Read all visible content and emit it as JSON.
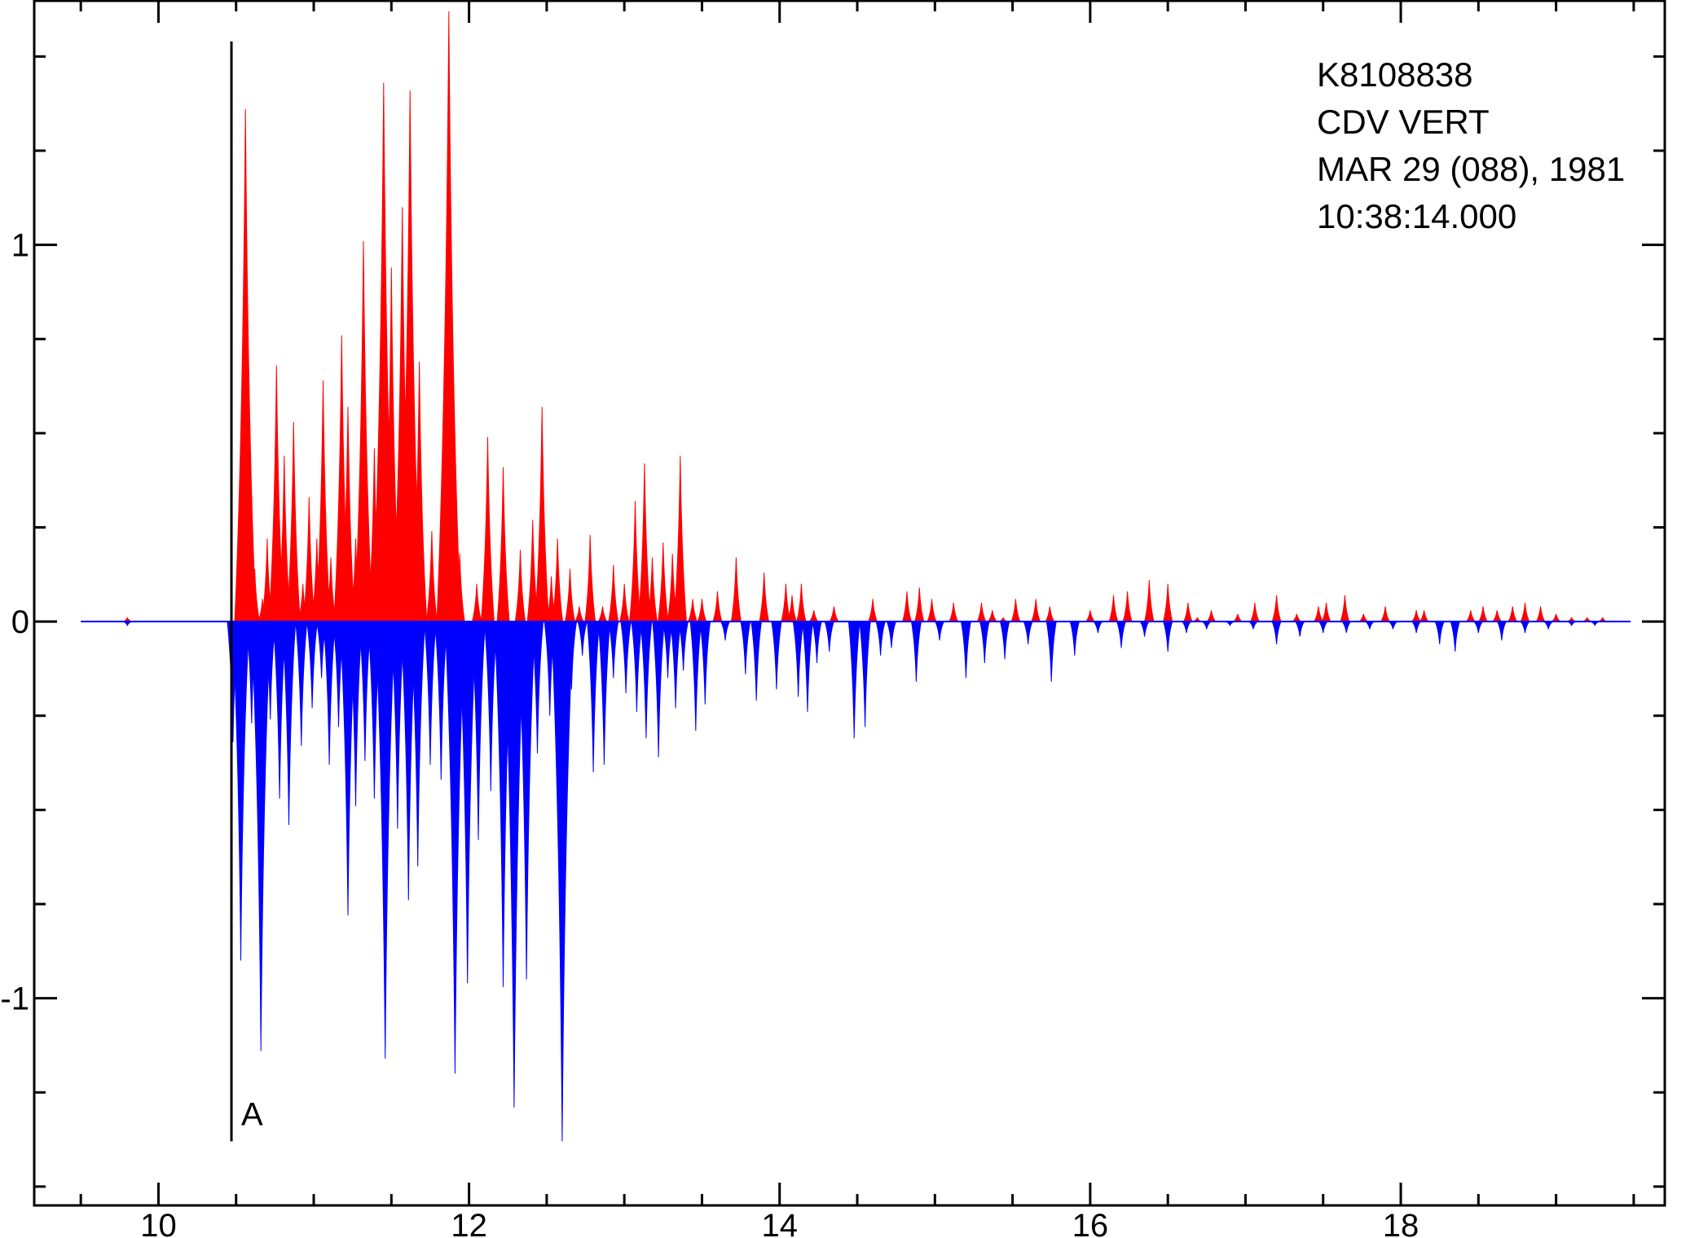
{
  "chart_data": {
    "type": "area",
    "title": "",
    "xlabel": "",
    "ylabel": "",
    "xlim": [
      9.2,
      19.7
    ],
    "ylim": [
      -1.55,
      1.65
    ],
    "x_ticks": [
      10,
      12,
      14,
      16,
      18
    ],
    "x_tick_labels": [
      "10",
      "12",
      "14",
      "16",
      "18"
    ],
    "x_minor_step": 0.5,
    "y_ticks": [
      -1,
      0,
      1
    ],
    "y_tick_labels": [
      "-1",
      "0",
      "1"
    ],
    "y_minor_step": 0.25,
    "info_lines": [
      "K8108838",
      "CDV  VERT",
      "MAR 29 (088), 1981",
      "10:38:14.000"
    ],
    "pick": {
      "label": "A",
      "x": 10.47,
      "ymin": -1.38,
      "ymax": 1.54
    },
    "trace_x_range": [
      9.5,
      19.48
    ],
    "colors": {
      "positive": "#ff0000",
      "negative": "#0000ff",
      "axis": "#000000"
    },
    "series": [
      {
        "name": "positive_peaks",
        "x": [
          9.8,
          10.56,
          10.62,
          10.67,
          10.7,
          10.76,
          10.81,
          10.87,
          10.93,
          10.97,
          11.02,
          11.06,
          11.11,
          11.18,
          11.22,
          11.27,
          11.32,
          11.39,
          11.45,
          11.5,
          11.57,
          11.62,
          11.68,
          11.76,
          11.87,
          11.94,
          12.05,
          12.12,
          12.22,
          12.33,
          12.41,
          12.47,
          12.53,
          12.57,
          12.65,
          12.71,
          12.78,
          12.86,
          12.93,
          13.0,
          13.07,
          13.13,
          13.18,
          13.25,
          13.31,
          13.36,
          13.44,
          13.5,
          13.6,
          13.72,
          13.9,
          14.04,
          14.08,
          14.14,
          14.22,
          14.35,
          14.6,
          14.82,
          14.9,
          14.98,
          15.12,
          15.3,
          15.37,
          15.44,
          15.52,
          15.65,
          15.74,
          16.0,
          16.15,
          16.24,
          16.38,
          16.5,
          16.63,
          16.69,
          16.78,
          16.95,
          17.06,
          17.2,
          17.33,
          17.47,
          17.52,
          17.64,
          17.76,
          17.9,
          18.1,
          18.15,
          18.45,
          18.53,
          18.62,
          18.72,
          18.8,
          18.9,
          19.0,
          19.1,
          19.2,
          19.3
        ],
        "values": [
          0.01,
          1.36,
          0.14,
          0.06,
          0.22,
          0.68,
          0.44,
          0.53,
          0.1,
          0.33,
          0.22,
          0.64,
          0.17,
          0.76,
          0.57,
          0.22,
          1.01,
          0.46,
          1.43,
          0.94,
          1.1,
          1.41,
          0.69,
          0.24,
          1.62,
          0.18,
          0.1,
          0.49,
          0.41,
          0.19,
          0.27,
          0.57,
          0.12,
          0.22,
          0.14,
          0.04,
          0.23,
          0.04,
          0.15,
          0.1,
          0.32,
          0.42,
          0.17,
          0.21,
          0.18,
          0.44,
          0.06,
          0.06,
          0.08,
          0.17,
          0.13,
          0.1,
          0.07,
          0.1,
          0.03,
          0.04,
          0.06,
          0.08,
          0.09,
          0.06,
          0.05,
          0.05,
          0.03,
          0.01,
          0.06,
          0.06,
          0.04,
          0.03,
          0.07,
          0.08,
          0.11,
          0.1,
          0.05,
          0.01,
          0.03,
          0.02,
          0.05,
          0.07,
          0.02,
          0.04,
          0.05,
          0.07,
          0.02,
          0.04,
          0.03,
          0.03,
          0.03,
          0.04,
          0.03,
          0.04,
          0.05,
          0.04,
          0.02,
          0.01,
          0.01,
          0.01
        ]
      },
      {
        "name": "negative_peaks",
        "x": [
          9.8,
          10.48,
          10.53,
          10.6,
          10.66,
          10.72,
          10.78,
          10.84,
          10.92,
          10.99,
          11.05,
          11.1,
          11.16,
          11.22,
          11.27,
          11.33,
          11.39,
          11.46,
          11.54,
          11.61,
          11.67,
          11.75,
          11.82,
          11.91,
          11.99,
          12.06,
          12.14,
          12.22,
          12.29,
          12.37,
          12.44,
          12.52,
          12.6,
          12.66,
          12.73,
          12.8,
          12.87,
          12.93,
          13.01,
          13.08,
          13.14,
          13.22,
          13.28,
          13.33,
          13.38,
          13.46,
          13.52,
          13.65,
          13.78,
          13.85,
          13.98,
          14.12,
          14.18,
          14.24,
          14.32,
          14.48,
          14.55,
          14.65,
          14.72,
          14.88,
          15.03,
          15.2,
          15.32,
          15.45,
          15.6,
          15.75,
          15.9,
          16.05,
          16.2,
          16.35,
          16.5,
          16.62,
          16.75,
          16.9,
          17.05,
          17.2,
          17.35,
          17.5,
          17.65,
          17.8,
          17.95,
          18.1,
          18.25,
          18.35,
          18.5,
          18.65,
          18.8,
          18.95,
          19.1,
          19.25
        ],
        "values": [
          -0.01,
          -0.32,
          -0.9,
          -0.27,
          -1.14,
          -0.26,
          -0.47,
          -0.54,
          -0.33,
          -0.23,
          -0.15,
          -0.38,
          -0.28,
          -0.78,
          -0.49,
          -0.37,
          -0.47,
          -1.16,
          -0.55,
          -0.74,
          -0.65,
          -0.38,
          -0.42,
          -1.2,
          -0.96,
          -0.58,
          -0.45,
          -0.97,
          -1.29,
          -0.95,
          -0.35,
          -0.25,
          -1.38,
          -0.18,
          -0.09,
          -0.4,
          -0.38,
          -0.15,
          -0.19,
          -0.24,
          -0.31,
          -0.36,
          -0.15,
          -0.23,
          -0.13,
          -0.29,
          -0.22,
          -0.05,
          -0.14,
          -0.21,
          -0.18,
          -0.2,
          -0.24,
          -0.11,
          -0.08,
          -0.31,
          -0.28,
          -0.09,
          -0.07,
          -0.16,
          -0.05,
          -0.15,
          -0.11,
          -0.1,
          -0.06,
          -0.16,
          -0.09,
          -0.03,
          -0.07,
          -0.04,
          -0.08,
          -0.03,
          -0.02,
          -0.01,
          -0.02,
          -0.06,
          -0.04,
          -0.03,
          -0.03,
          -0.02,
          -0.02,
          -0.03,
          -0.06,
          -0.08,
          -0.03,
          -0.05,
          -0.03,
          -0.02,
          -0.01,
          -0.01
        ]
      }
    ]
  }
}
